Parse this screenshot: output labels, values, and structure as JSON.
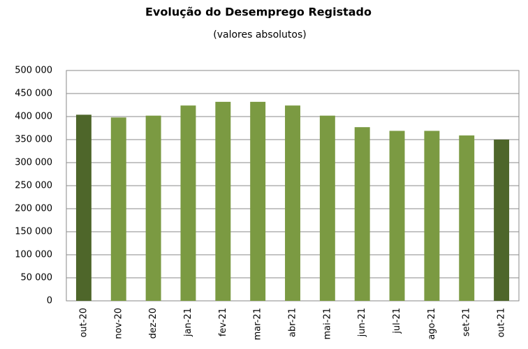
{
  "chart_data": {
    "type": "bar",
    "title": "Evolução do Desemprego Registado",
    "subtitle": "(valores absolutos)",
    "categories": [
      "out-20",
      "nov-20",
      "dez-20",
      "jan-21",
      "fev-21",
      "mar-21",
      "abr-21",
      "mai-21",
      "jun-21",
      "jul-21",
      "ago-21",
      "set-21",
      "out-21"
    ],
    "values": [
      404000,
      398000,
      402000,
      424000,
      432000,
      432000,
      424000,
      402000,
      377000,
      369000,
      369000,
      359000,
      350000
    ],
    "colors": [
      "#4e662a",
      "#7b9a42",
      "#7b9a42",
      "#7b9a42",
      "#7b9a42",
      "#7b9a42",
      "#7b9a42",
      "#7b9a42",
      "#7b9a42",
      "#7b9a42",
      "#7b9a42",
      "#7b9a42",
      "#4e662a"
    ],
    "ylim": [
      0,
      500000
    ],
    "yticks": [
      0,
      {
        "value": 50000,
        "label": "50 000"
      },
      {
        "value": 100000,
        "label": "100 000"
      },
      {
        "value": 150000,
        "label": "150 000"
      },
      {
        "value": 200000,
        "label": "200 000"
      },
      {
        "value": 250000,
        "label": "250 000"
      },
      {
        "value": 300000,
        "label": "300 000"
      },
      {
        "value": 350000,
        "label": "350 000"
      },
      {
        "value": 400000,
        "label": "400 000"
      },
      {
        "value": 450000,
        "label": "450 000"
      },
      {
        "value": 500000,
        "label": "500 000"
      }
    ],
    "grid": true
  }
}
